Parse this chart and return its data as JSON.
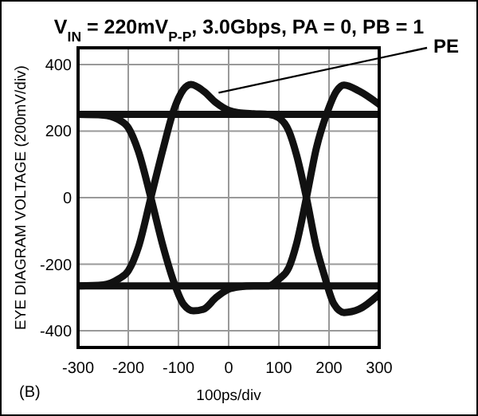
{
  "chart_data": {
    "type": "line",
    "title": "V$_{IN}$ = 220mV$_{P-P}$, 3.0Gbps, PA = 0, PB = 1",
    "xlabel": "100ps/div",
    "ylabel": "EYE DIAGRAM VOLTAGE (200mV/div)",
    "annotations": [
      {
        "text": "PE",
        "x": -20,
        "y": 315
      },
      "(B)"
    ],
    "series": [
      {
        "color": "#111111",
        "x": [
          -300,
          -200,
          -100,
          0,
          100,
          200,
          300
        ],
        "values": [
          250,
          250,
          250,
          250,
          250,
          250,
          250
        ]
      },
      {
        "color": "#111111",
        "x": [
          -300,
          -200,
          -100,
          0,
          100,
          200,
          300
        ],
        "values": [
          -265,
          -265,
          -265,
          -265,
          -265,
          -265,
          -265
        ]
      },
      {
        "color": "#111111",
        "x": [
          -300,
          -250,
          -220,
          -200,
          -180,
          -155,
          -130,
          -110,
          -90,
          -75,
          -50,
          -25,
          0,
          20,
          50,
          80,
          100,
          120,
          135,
          155,
          175,
          190,
          210,
          230,
          260,
          300
        ],
        "values": [
          -265,
          -262,
          -245,
          -220,
          -150,
          0,
          150,
          260,
          325,
          340,
          320,
          285,
          262,
          255,
          252,
          250,
          240,
          200,
          130,
          0,
          -150,
          -230,
          -320,
          -345,
          -335,
          -290
        ]
      },
      {
        "color": "#111111",
        "x": [
          -300,
          -250,
          -220,
          -200,
          -180,
          -155,
          -130,
          -110,
          -90,
          -70,
          -50,
          -25,
          0,
          20,
          50,
          80,
          100,
          120,
          135,
          155,
          175,
          195,
          215,
          230,
          260,
          300
        ],
        "values": [
          250,
          248,
          235,
          210,
          140,
          0,
          -150,
          -250,
          -320,
          -340,
          -335,
          -300,
          -275,
          -268,
          -265,
          -265,
          -245,
          -210,
          -140,
          0,
          150,
          250,
          320,
          338,
          320,
          280
        ]
      }
    ],
    "xlim": [
      -300,
      300
    ],
    "xticks": [
      -300,
      -200,
      -100,
      0,
      100,
      200,
      300
    ],
    "ylim": [
      -450,
      450
    ],
    "yticks": [
      -400,
      -200,
      0,
      200,
      400
    ],
    "grid": true,
    "line_style": "solid"
  }
}
